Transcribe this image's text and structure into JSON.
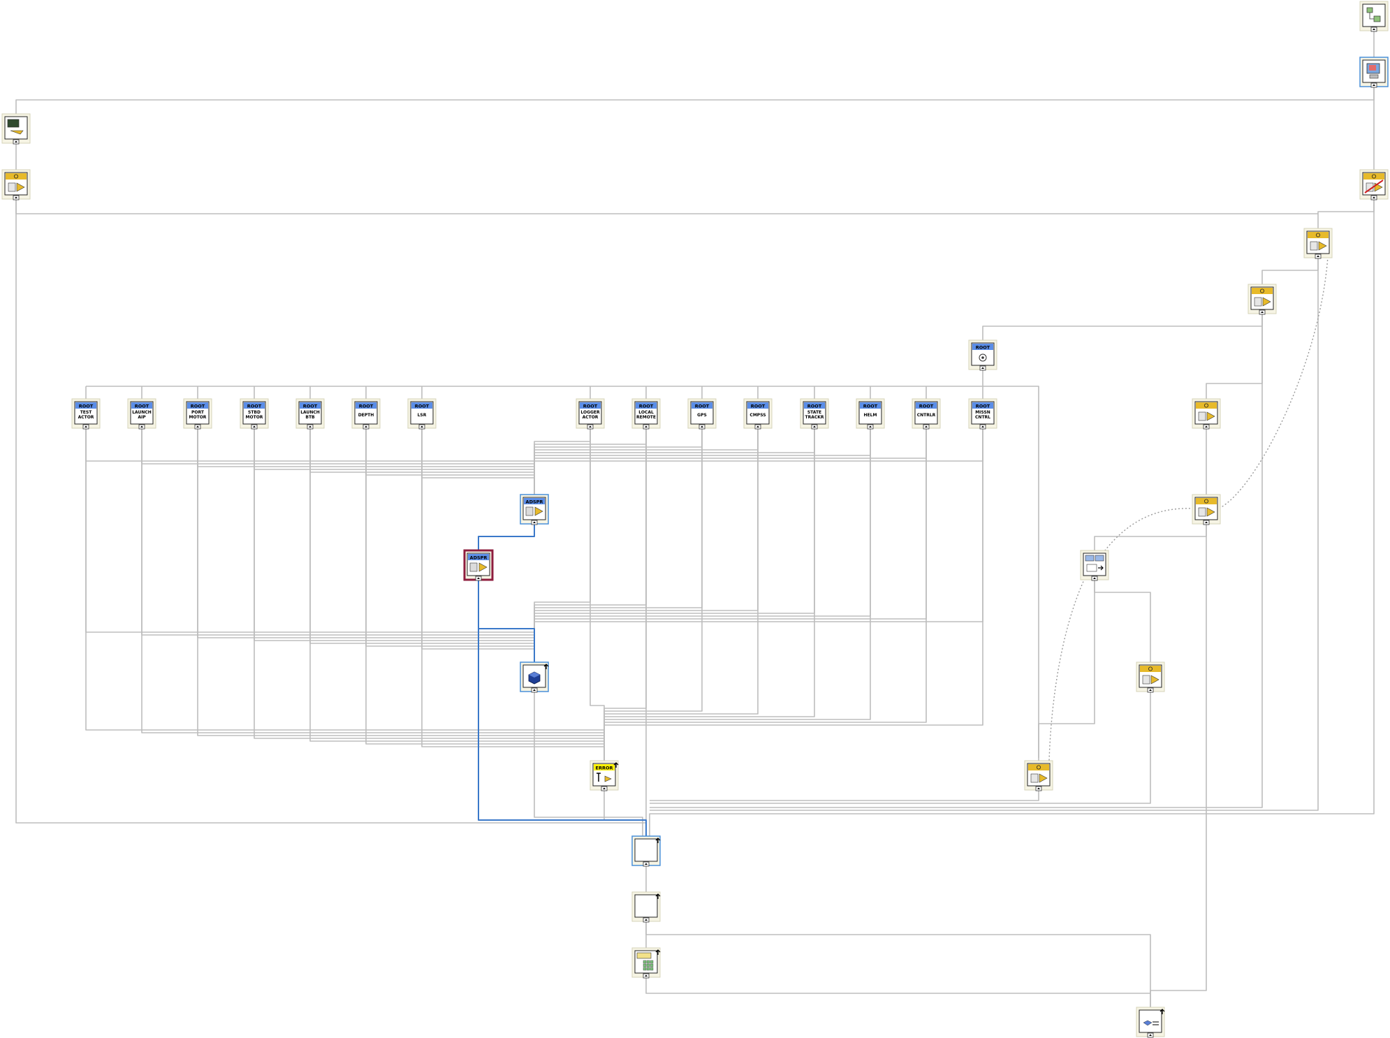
{
  "theme": {
    "wire": "#bdbdbd",
    "wire_ref": "#3a78c9",
    "wire_dotted": "#9a9a9a",
    "node_bg": "#f6f4e4",
    "node_border": "#d6d3b8",
    "icon_border": "#222222",
    "header_blue": "#5b8ee8",
    "header_gold": "#e7ba2a",
    "header_yellow": "#fff200",
    "selected": "#8e1d3e",
    "blue_frame": "#4a90d9"
  },
  "nodes": [
    {
      "id": "top-vi",
      "icon": "hierarchy-document-icon"
    },
    {
      "id": "computer",
      "icon": "computer-icon"
    },
    {
      "id": "launcher",
      "icon": "launcher-icon"
    },
    {
      "id": "actor-core",
      "icon": "actor-core-icon"
    },
    {
      "id": "actor-broken",
      "icon": "actor-broken-icon"
    },
    {
      "id": "actor-window",
      "icon": "actor-window-icon"
    },
    {
      "id": "gear",
      "icon": "gear-icon"
    },
    {
      "id": "root-hub",
      "icon": "root-gear-icon",
      "label": "ROOT"
    },
    {
      "id": "test-actor",
      "icon": "root-icon",
      "label": "ROOT",
      "sub": [
        "TEST",
        "ACTOR"
      ]
    },
    {
      "id": "launch-aip",
      "icon": "root-icon",
      "label": "ROOT",
      "sub": [
        "LAUNCH",
        "AIP"
      ]
    },
    {
      "id": "port-motor",
      "icon": "root-icon",
      "label": "ROOT",
      "sub": [
        "PORT",
        "MOTOR"
      ]
    },
    {
      "id": "stbd-motor",
      "icon": "root-icon",
      "label": "ROOT",
      "sub": [
        "STBD",
        "MOTOR"
      ]
    },
    {
      "id": "launch-btb",
      "icon": "root-icon",
      "label": "ROOT",
      "sub": [
        "LAUNCH",
        "BTB"
      ]
    },
    {
      "id": "depth",
      "icon": "root-icon",
      "label": "ROOT",
      "sub": [
        "DEPTH"
      ]
    },
    {
      "id": "lsr",
      "icon": "root-icon",
      "label": "ROOT",
      "sub": [
        "LSR"
      ]
    },
    {
      "id": "logger-actor",
      "icon": "root-icon",
      "label": "ROOT",
      "sub": [
        "LOGGER",
        "ACTOR"
      ]
    },
    {
      "id": "local-remote",
      "icon": "root-icon",
      "label": "ROOT",
      "sub": [
        "LOCAL",
        "REMOTE"
      ]
    },
    {
      "id": "gps",
      "icon": "root-icon",
      "label": "ROOT",
      "sub": [
        "GPS"
      ]
    },
    {
      "id": "cmpss",
      "icon": "root-icon",
      "label": "ROOT",
      "sub": [
        "CMPSS"
      ]
    },
    {
      "id": "state-trackr",
      "icon": "root-icon",
      "label": "ROOT",
      "sub": [
        "STATE",
        "TRACKR"
      ]
    },
    {
      "id": "helm",
      "icon": "root-icon",
      "label": "ROOT",
      "sub": [
        "HELM"
      ]
    },
    {
      "id": "cntrlr",
      "icon": "root-icon",
      "label": "ROOT",
      "sub": [
        "CNTRLR"
      ]
    },
    {
      "id": "missn-cntrl",
      "icon": "root-icon",
      "label": "ROOT",
      "sub": [
        "MISSN",
        "CNTRL"
      ]
    },
    {
      "id": "actor-gear-right",
      "icon": "actor-gear-icon"
    },
    {
      "id": "adspr-class",
      "icon": "adspr-class-icon",
      "label": "ADSPR"
    },
    {
      "id": "adspr-method",
      "icon": "adspr-method-icon",
      "label": "ADSPR"
    },
    {
      "id": "actor-message",
      "icon": "actor-message-icon"
    },
    {
      "id": "message-send",
      "icon": "message-send-icon"
    },
    {
      "id": "cube",
      "icon": "cube-icon"
    },
    {
      "id": "actor-error",
      "icon": "actor-error-icon"
    },
    {
      "id": "error-handler",
      "icon": "error-handler-icon",
      "label": "ERROR"
    },
    {
      "id": "actor-launch",
      "icon": "actor-launch-icon"
    },
    {
      "id": "blank-a",
      "icon": "blank-icon"
    },
    {
      "id": "blank-b",
      "icon": "blank-icon"
    },
    {
      "id": "table",
      "icon": "table-icon"
    },
    {
      "id": "class-vi",
      "icon": "class-vi-icon"
    }
  ]
}
